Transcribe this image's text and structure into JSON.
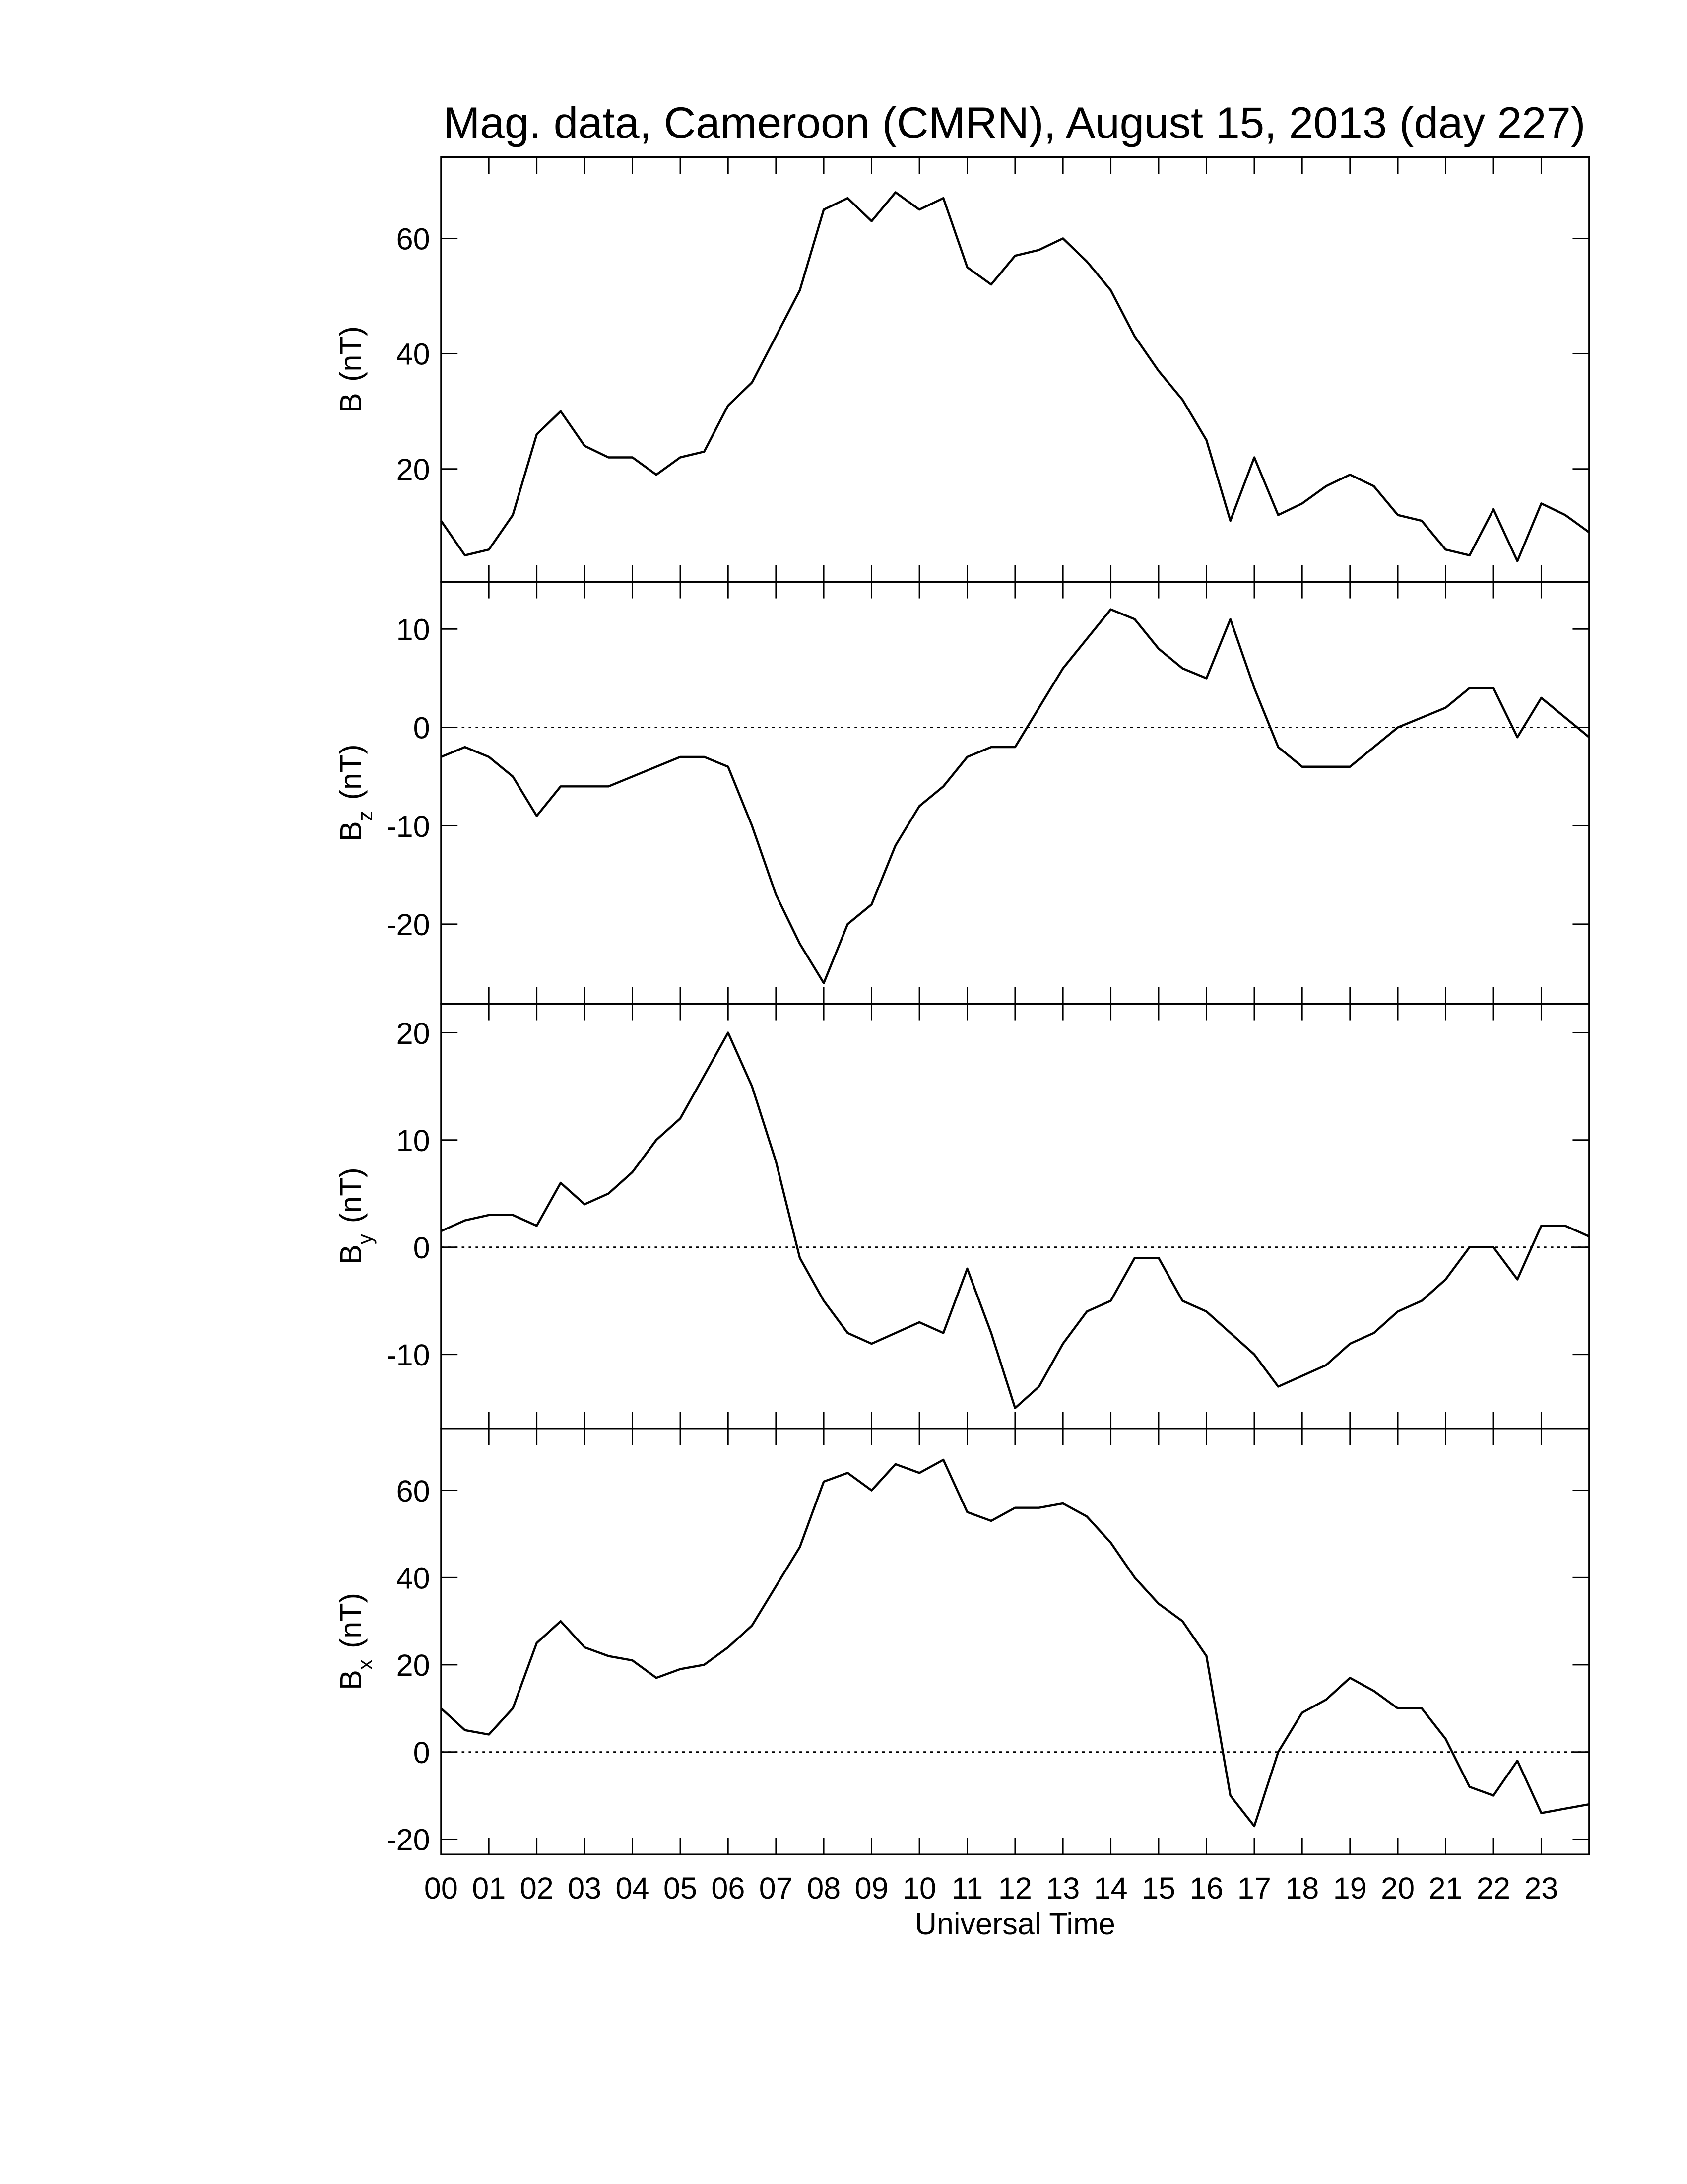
{
  "chart_data": [
    {
      "type": "line",
      "title": "Mag. data, Cameroon (CMRN), August 15, 2013 (day 227)",
      "ylabel": {
        "symbol": "B",
        "unit": "(nT)"
      },
      "xlim": [
        0,
        24
      ],
      "ylim": [
        0.4,
        74.1
      ],
      "yticks": [
        20,
        40,
        60
      ],
      "x": [
        0,
        0.5,
        1,
        1.5,
        2,
        2.5,
        3,
        3.5,
        4,
        4.5,
        5,
        5.5,
        6,
        6.5,
        7,
        7.5,
        8,
        8.5,
        9,
        9.5,
        10,
        10.5,
        11,
        11.5,
        12,
        12.5,
        13,
        13.5,
        14,
        14.5,
        15,
        15.5,
        16,
        16.5,
        17,
        17.5,
        18,
        18.5,
        19,
        19.5,
        20,
        20.5,
        21,
        21.5,
        22,
        22.5,
        23,
        23.5,
        24
      ],
      "series": [
        {
          "color": "#000000",
          "values": [
            11,
            5,
            6,
            12,
            26,
            30,
            24,
            22,
            22,
            19,
            22,
            23,
            31,
            35,
            43,
            51,
            65,
            67,
            63,
            68,
            65,
            67,
            55,
            52,
            57,
            58,
            60,
            56,
            51,
            43,
            37,
            32,
            25,
            11,
            22,
            12,
            14,
            17,
            19,
            17,
            12,
            11,
            6,
            5,
            13,
            4,
            14,
            12,
            9
          ]
        }
      ]
    },
    {
      "type": "line",
      "ylabel": {
        "symbol": "B",
        "subscript": "z",
        "unit": "(nT)"
      },
      "xlim": [
        0,
        24
      ],
      "ylim": [
        -28.1,
        14.8
      ],
      "yticks": [
        -20,
        -10,
        0,
        10
      ],
      "hline": 0,
      "x": [
        0,
        0.5,
        1,
        1.5,
        2,
        2.5,
        3,
        3.5,
        4,
        4.5,
        5,
        5.5,
        6,
        6.5,
        7,
        7.5,
        8,
        8.5,
        9,
        9.5,
        10,
        10.5,
        11,
        11.5,
        12,
        12.5,
        13,
        13.5,
        14,
        14.5,
        15,
        15.5,
        16,
        16.5,
        17,
        17.5,
        18,
        18.5,
        19,
        19.5,
        20,
        20.5,
        21,
        21.5,
        22,
        22.5,
        23,
        23.5,
        24
      ],
      "series": [
        {
          "color": "#000000",
          "values": [
            -3,
            -2,
            -3,
            -5,
            -9,
            -6,
            -6,
            -6,
            -5,
            -4,
            -3,
            -3,
            -4,
            -10,
            -17,
            -22,
            -26,
            -20,
            -18,
            -12,
            -8,
            -6,
            -3,
            -2,
            -2,
            2,
            6,
            9,
            12,
            11,
            8,
            6,
            5,
            11,
            4,
            -2,
            -4,
            -4,
            -4,
            -2,
            0,
            1,
            2,
            4,
            4,
            -1,
            3,
            1,
            -1
          ]
        }
      ]
    },
    {
      "type": "line",
      "ylabel": {
        "symbol": "B",
        "subscript": "y",
        "unit": "(nT)"
      },
      "xlim": [
        0,
        24
      ],
      "ylim": [
        -16.9,
        22.7
      ],
      "yticks": [
        -10,
        0,
        10,
        20
      ],
      "hline": 0,
      "x": [
        0,
        0.5,
        1,
        1.5,
        2,
        2.5,
        3,
        3.5,
        4,
        4.5,
        5,
        5.5,
        6,
        6.5,
        7,
        7.5,
        8,
        8.5,
        9,
        9.5,
        10,
        10.5,
        11,
        11.5,
        12,
        12.5,
        13,
        13.5,
        14,
        14.5,
        15,
        15.5,
        16,
        16.5,
        17,
        17.5,
        18,
        18.5,
        19,
        19.5,
        20,
        20.5,
        21,
        21.5,
        22,
        22.5,
        23,
        23.5,
        24
      ],
      "series": [
        {
          "color": "#000000",
          "values": [
            1.5,
            2.5,
            3,
            3,
            2,
            6,
            4,
            5,
            7,
            10,
            12,
            16,
            20,
            15,
            8,
            -1,
            -5,
            -8,
            -9,
            -8,
            -7,
            -8,
            -2,
            -8,
            -15,
            -13,
            -9,
            -6,
            -5,
            -1,
            -1,
            -5,
            -6,
            -8,
            -10,
            -13,
            -12,
            -11,
            -9,
            -8,
            -6,
            -5,
            -3,
            0,
            0,
            -3,
            2,
            2,
            1
          ]
        }
      ]
    },
    {
      "type": "line",
      "ylabel": {
        "symbol": "B",
        "subscript": "x",
        "unit": "(nT)"
      },
      "xlabel": "Universal Time",
      "xlim": [
        0,
        24
      ],
      "ylim": [
        -23.5,
        74.2
      ],
      "yticks": [
        -20,
        0,
        20,
        40,
        60
      ],
      "hline": 0,
      "xticks": [
        {
          "value": 0,
          "label": "00"
        },
        {
          "value": 1,
          "label": "01"
        },
        {
          "value": 2,
          "label": "02"
        },
        {
          "value": 3,
          "label": "03"
        },
        {
          "value": 4,
          "label": "04"
        },
        {
          "value": 5,
          "label": "05"
        },
        {
          "value": 6,
          "label": "06"
        },
        {
          "value": 7,
          "label": "07"
        },
        {
          "value": 8,
          "label": "08"
        },
        {
          "value": 9,
          "label": "09"
        },
        10,
        11,
        12,
        13,
        14,
        15,
        16,
        17,
        18,
        19,
        20,
        21,
        22,
        23
      ],
      "x": [
        0,
        0.5,
        1,
        1.5,
        2,
        2.5,
        3,
        3.5,
        4,
        4.5,
        5,
        5.5,
        6,
        6.5,
        7,
        7.5,
        8,
        8.5,
        9,
        9.5,
        10,
        10.5,
        11,
        11.5,
        12,
        12.5,
        13,
        13.5,
        14,
        14.5,
        15,
        15.5,
        16,
        16.5,
        17,
        17.5,
        18,
        18.5,
        19,
        19.5,
        20,
        20.5,
        21,
        21.5,
        22,
        22.5,
        23,
        23.5,
        24
      ],
      "series": [
        {
          "color": "#000000",
          "values": [
            10,
            5,
            4,
            10,
            25,
            30,
            24,
            22,
            21,
            17,
            19,
            20,
            24,
            29,
            38,
            47,
            62,
            64,
            60,
            66,
            64,
            67,
            55,
            53,
            56,
            56,
            57,
            54,
            48,
            40,
            34,
            30,
            22,
            -10,
            -17,
            0,
            9,
            12,
            17,
            14,
            10,
            10,
            3,
            -8,
            -10,
            -2,
            -14,
            -13,
            -12
          ]
        }
      ]
    }
  ]
}
